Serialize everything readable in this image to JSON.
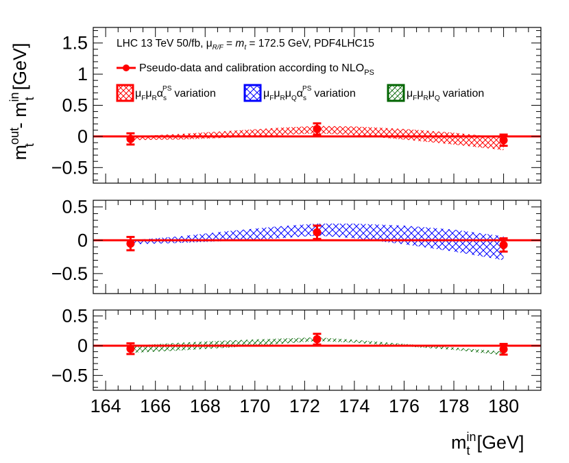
{
  "chart_data": {
    "type": "errorbar-band",
    "x_axis": {
      "label": "m",
      "label_sub": "t",
      "label_sup": "in",
      "unit": "[GeV]",
      "range": [
        163.5,
        181.5
      ],
      "tick_labels": [
        164,
        166,
        168,
        170,
        172,
        174,
        176,
        178,
        180
      ]
    },
    "y_axis": {
      "label": "m",
      "label_sub": "t",
      "label_sup_out": "out",
      "label_mid": " - m",
      "label_sup_in": "in",
      "unit": "[GeV]"
    },
    "info_text": "LHC 13 TeV 50/fb, μR/F = mt = 172.5 GeV, PDF4LHC15",
    "info_parts": {
      "a": "LHC 13 TeV 50/fb, ",
      "mu": "μ",
      "mu_sub": "R/F",
      "eq": " = ",
      "mt": "m",
      "mt_sub": "t",
      "b": " = 172.5 GeV, PDF4LHC15"
    },
    "legend": {
      "points": {
        "label": "Pseudo-data and calibration according to NLO",
        "sub": "PS",
        "color": "#ff0000"
      },
      "bands": [
        {
          "label_greek": "μ_F μ_R α_s^PS",
          "parts": [
            "μ",
            "F",
            "μ",
            "R",
            "α",
            "s",
            "PS"
          ],
          "suffix": "variation",
          "color": "#ff0000"
        },
        {
          "label_greek": "μ_F μ_R μ_Q α_s^PS",
          "parts": [
            "μ",
            "F",
            "μ",
            "R",
            "μ",
            "Q",
            "α",
            "s",
            "PS"
          ],
          "suffix": "variation",
          "color": "#0000ff"
        },
        {
          "label_greek": "μ_F μ_R μ_Q",
          "parts": [
            "μ",
            "F",
            "μ",
            "R",
            "μ",
            "Q"
          ],
          "suffix": "variation",
          "color": "#006400"
        }
      ]
    },
    "panels": [
      {
        "name": "mu_F mu_R alpha_s^PS variation",
        "ylim": [
          -0.75,
          1.75
        ],
        "y_tick_labels": [
          "-0.5",
          "0",
          "0.5",
          "1",
          "1.5"
        ],
        "y_ticks": [
          -0.5,
          0,
          0.5,
          1,
          1.5
        ],
        "band_color": "#ff0000",
        "band": {
          "x": [
            165,
            167,
            169,
            171,
            172.5,
            174,
            176,
            178,
            180
          ],
          "upper": [
            0.0,
            0.04,
            0.09,
            0.14,
            0.17,
            0.16,
            0.12,
            0.06,
            -0.02
          ],
          "lower": [
            -0.06,
            -0.05,
            -0.02,
            0.02,
            0.05,
            0.02,
            -0.05,
            -0.13,
            -0.22
          ]
        },
        "points": [
          {
            "x": 165,
            "y": -0.04,
            "err": 0.09
          },
          {
            "x": 172.5,
            "y": 0.12,
            "err": 0.09
          },
          {
            "x": 180,
            "y": -0.06,
            "err": 0.09
          }
        ]
      },
      {
        "name": "mu_F mu_R mu_Q alpha_s^PS variation",
        "ylim": [
          -0.8,
          0.6
        ],
        "y_tick_labels": [
          "-0.5",
          "0",
          "0.5"
        ],
        "y_ticks": [
          -0.5,
          0,
          0.5
        ],
        "band_color": "#0000ff",
        "band": {
          "x": [
            165,
            167,
            169,
            171,
            172.5,
            174,
            176,
            178,
            180
          ],
          "upper": [
            0.0,
            0.06,
            0.14,
            0.21,
            0.25,
            0.25,
            0.22,
            0.16,
            0.06
          ],
          "lower": [
            -0.06,
            -0.04,
            -0.01,
            0.03,
            0.07,
            0.03,
            -0.06,
            -0.17,
            -0.3
          ]
        },
        "points": [
          {
            "x": 165,
            "y": -0.05,
            "err": 0.1
          },
          {
            "x": 172.5,
            "y": 0.12,
            "err": 0.1
          },
          {
            "x": 180,
            "y": -0.07,
            "err": 0.1
          }
        ]
      },
      {
        "name": "mu_F mu_R mu_Q variation",
        "ylim": [
          -0.75,
          0.6
        ],
        "y_tick_labels": [
          "-0.5",
          "0",
          "0.5"
        ],
        "y_ticks": [
          -0.5,
          0,
          0.5
        ],
        "band_color": "#006400",
        "band": {
          "x": [
            165,
            167,
            169,
            171,
            172.5,
            174,
            176,
            178,
            180
          ],
          "upper": [
            0.0,
            0.05,
            0.09,
            0.12,
            0.14,
            0.1,
            0.03,
            -0.03,
            -0.1
          ],
          "lower": [
            -0.12,
            -0.08,
            -0.03,
            0.03,
            0.08,
            0.05,
            -0.01,
            -0.07,
            -0.16
          ]
        },
        "points": [
          {
            "x": 165,
            "y": -0.05,
            "err": 0.09
          },
          {
            "x": 172.5,
            "y": 0.11,
            "err": 0.09
          },
          {
            "x": 180,
            "y": -0.06,
            "err": 0.09
          }
        ]
      }
    ]
  },
  "colors": {
    "line": "#ff0000",
    "frame": "#000000"
  }
}
